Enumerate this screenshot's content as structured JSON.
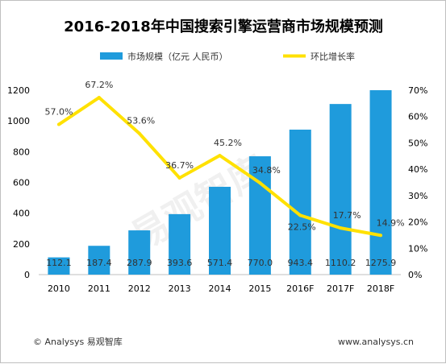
{
  "chart_data": {
    "type": "bar",
    "title": "2016-2018年中国搜索引擎运营商市场规模预测",
    "categories": [
      "2010",
      "2011",
      "2012",
      "2013",
      "2014",
      "2015",
      "2016F",
      "2017F",
      "2018F"
    ],
    "series": [
      {
        "name": "市场规模（亿元 人民币）",
        "type": "bar",
        "axis": "left",
        "color": "#1f9bdc",
        "values": [
          112.1,
          187.4,
          287.9,
          393.6,
          571.4,
          770.0,
          943.4,
          1110.2,
          1275.9
        ],
        "labels": [
          "112.1",
          "187.4",
          "287.9",
          "393.6",
          "571.4",
          "770.0",
          "943.4",
          "1110.2",
          "1275.9"
        ]
      },
      {
        "name": "环比增长率",
        "type": "line",
        "axis": "right",
        "color": "#ffe100",
        "values": [
          57.0,
          67.2,
          53.6,
          36.7,
          45.2,
          34.8,
          22.5,
          17.7,
          14.9
        ],
        "labels": [
          "57.0%",
          "67.2%",
          "53.6%",
          "36.7%",
          "45.2%",
          "34.8%",
          "22.5%",
          "17.7%",
          "14.9%"
        ]
      }
    ],
    "y_left": {
      "min": 0,
      "max": 1200,
      "ticks": [
        "0",
        "200",
        "400",
        "600",
        "800",
        "1000",
        "1200"
      ]
    },
    "y_right": {
      "min": 0,
      "max": 70,
      "ticks": [
        "0%",
        "10%",
        "20%",
        "30%",
        "40%",
        "50%",
        "60%",
        "70%"
      ]
    },
    "legend_position": "top",
    "grid": false
  },
  "watermark": "易观智库",
  "footer": {
    "source": "© Analysys 易观智库",
    "url": "www.analysys.cn"
  }
}
